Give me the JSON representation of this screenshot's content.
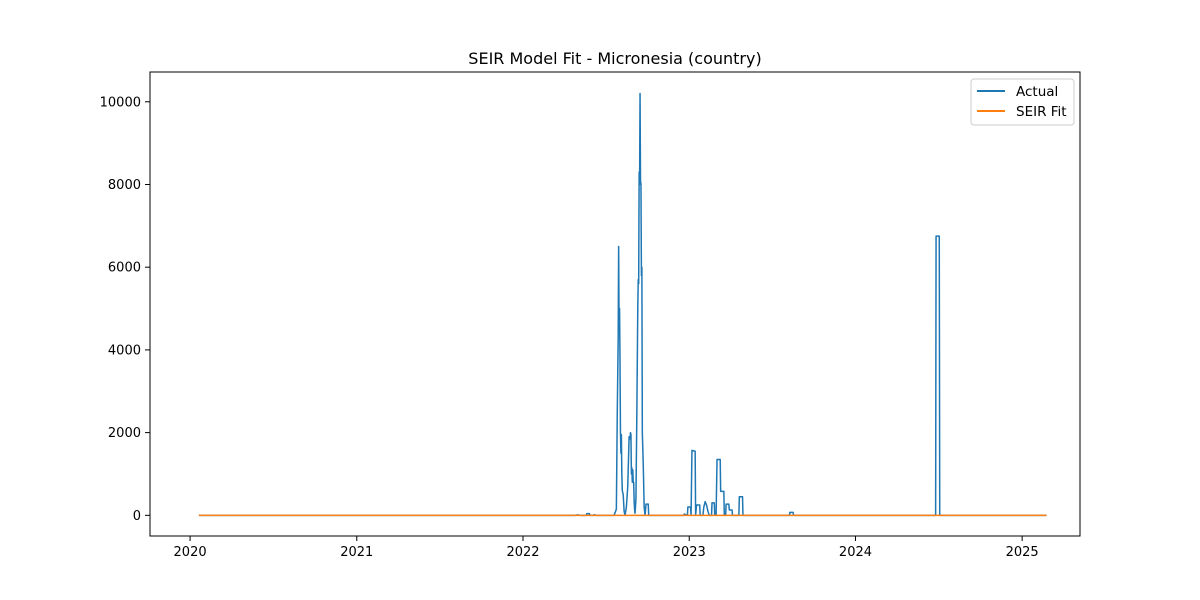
{
  "chart_data": {
    "type": "line",
    "title": "SEIR Model Fit - Micronesia (country)",
    "xlabel": "",
    "ylabel": "",
    "x_ticks": [
      "2020",
      "2021",
      "2022",
      "2023",
      "2024",
      "2025"
    ],
    "y_ticks": [
      "0",
      "2000",
      "4000",
      "6000",
      "8000",
      "10000"
    ],
    "xlim": [
      "2019-10-05",
      "2025-05-08"
    ],
    "ylim": [
      -500,
      10720
    ],
    "grid": false,
    "legend": "top-right",
    "series": [
      {
        "name": "Actual",
        "color": "#1f77b4",
        "points": [
          [
            "2020-01-22",
            0
          ],
          [
            "2022-04-25",
            0
          ],
          [
            "2022-05-01",
            10
          ],
          [
            "2022-05-07",
            0
          ],
          [
            "2022-05-20",
            0
          ],
          [
            "2022-05-21",
            40
          ],
          [
            "2022-05-27",
            40
          ],
          [
            "2022-05-28",
            0
          ],
          [
            "2022-06-05",
            0
          ],
          [
            "2022-06-06",
            15
          ],
          [
            "2022-06-12",
            0
          ],
          [
            "2022-07-20",
            0
          ],
          [
            "2022-07-25",
            150
          ],
          [
            "2022-07-27",
            2500
          ],
          [
            "2022-07-29",
            4300
          ],
          [
            "2022-07-30",
            6500
          ],
          [
            "2022-07-31",
            4500
          ],
          [
            "2022-08-01",
            5000
          ],
          [
            "2022-08-02",
            3700
          ],
          [
            "2022-08-03",
            2000
          ],
          [
            "2022-08-04",
            1500
          ],
          [
            "2022-08-05",
            1950
          ],
          [
            "2022-08-06",
            1000
          ],
          [
            "2022-08-07",
            600
          ],
          [
            "2022-08-09",
            500
          ],
          [
            "2022-08-11",
            100
          ],
          [
            "2022-08-13",
            0
          ],
          [
            "2022-08-16",
            200
          ],
          [
            "2022-08-19",
            700
          ],
          [
            "2022-08-22",
            1900
          ],
          [
            "2022-08-24",
            1850
          ],
          [
            "2022-08-25",
            2000
          ],
          [
            "2022-08-26",
            1950
          ],
          [
            "2022-08-27",
            1000
          ],
          [
            "2022-08-28",
            1150
          ],
          [
            "2022-08-29",
            800
          ],
          [
            "2022-08-30",
            1100
          ],
          [
            "2022-08-31",
            800
          ],
          [
            "2022-09-01",
            800
          ],
          [
            "2022-09-02",
            350
          ],
          [
            "2022-09-03",
            150
          ],
          [
            "2022-09-04",
            50
          ],
          [
            "2022-09-06",
            400
          ],
          [
            "2022-09-08",
            2500
          ],
          [
            "2022-09-10",
            5000
          ],
          [
            "2022-09-11",
            5700
          ],
          [
            "2022-09-12",
            5600
          ],
          [
            "2022-09-13",
            8300
          ],
          [
            "2022-09-14",
            8000
          ],
          [
            "2022-09-15",
            10200
          ],
          [
            "2022-09-16",
            8100
          ],
          [
            "2022-09-17",
            8000
          ],
          [
            "2022-09-18",
            5800
          ],
          [
            "2022-09-19",
            6000
          ],
          [
            "2022-09-20",
            2000
          ],
          [
            "2022-09-22",
            1250
          ],
          [
            "2022-09-24",
            200
          ],
          [
            "2022-09-26",
            0
          ],
          [
            "2022-09-28",
            270
          ],
          [
            "2022-10-03",
            270
          ],
          [
            "2022-10-04",
            0
          ],
          [
            "2022-12-20",
            0
          ],
          [
            "2022-12-21",
            30
          ],
          [
            "2022-12-28",
            0
          ],
          [
            "2022-12-29",
            200
          ],
          [
            "2023-01-04",
            200
          ],
          [
            "2023-01-05",
            0
          ],
          [
            "2023-01-07",
            1570
          ],
          [
            "2023-01-14",
            1550
          ],
          [
            "2023-01-15",
            0
          ],
          [
            "2023-01-17",
            250
          ],
          [
            "2023-01-24",
            250
          ],
          [
            "2023-01-25",
            0
          ],
          [
            "2023-01-31",
            0
          ],
          [
            "2023-02-02",
            200
          ],
          [
            "2023-02-05",
            330
          ],
          [
            "2023-02-08",
            250
          ],
          [
            "2023-02-11",
            100
          ],
          [
            "2023-02-14",
            0
          ],
          [
            "2023-02-19",
            0
          ],
          [
            "2023-02-20",
            300
          ],
          [
            "2023-02-25",
            300
          ],
          [
            "2023-02-26",
            0
          ],
          [
            "2023-03-01",
            0
          ],
          [
            "2023-03-03",
            1350
          ],
          [
            "2023-03-10",
            1350
          ],
          [
            "2023-03-11",
            580
          ],
          [
            "2023-03-18",
            580
          ],
          [
            "2023-03-19",
            0
          ],
          [
            "2023-03-22",
            0
          ],
          [
            "2023-03-23",
            270
          ],
          [
            "2023-03-29",
            270
          ],
          [
            "2023-03-30",
            130
          ],
          [
            "2023-04-05",
            130
          ],
          [
            "2023-04-06",
            0
          ],
          [
            "2023-04-20",
            0
          ],
          [
            "2023-04-21",
            450
          ],
          [
            "2023-04-28",
            450
          ],
          [
            "2023-04-29",
            0
          ],
          [
            "2023-08-09",
            0
          ],
          [
            "2023-08-10",
            70
          ],
          [
            "2023-08-17",
            70
          ],
          [
            "2023-08-18",
            0
          ],
          [
            "2024-06-25",
            0
          ],
          [
            "2024-06-26",
            6750
          ],
          [
            "2024-07-03",
            6750
          ],
          [
            "2024-07-04",
            0
          ],
          [
            "2025-02-22",
            0
          ]
        ]
      },
      {
        "name": "SEIR Fit",
        "color": "#ff7f0e",
        "points": [
          [
            "2020-01-22",
            0
          ],
          [
            "2025-02-22",
            0
          ]
        ]
      }
    ]
  }
}
